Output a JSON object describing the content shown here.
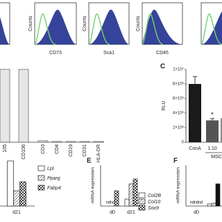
{
  "flow": {
    "y_label": "Counts",
    "x_labels": [
      "CD73",
      "Sca1",
      "CD45"
    ]
  },
  "chart_data": [
    {
      "type": "bar",
      "categories": [
        "105",
        "CD106",
        "CD3",
        "CD4",
        "CD19",
        "CD31",
        "HLA-DR"
      ],
      "values": [
        100,
        100,
        2,
        1,
        1,
        1,
        1
      ],
      "color": "#e6e6e6"
    },
    {
      "type": "bar",
      "label": "C",
      "y_label": "RLU",
      "group_label": "MSC",
      "annotation": "*",
      "categories": [
        "ConA",
        "1:10",
        null
      ],
      "values": [
        8000000,
        3000000,
        3300000
      ],
      "errors": [
        1000000,
        250000,
        200000
      ],
      "colors": [
        "#1a1a1a",
        "#555555",
        "#8a8a8a"
      ],
      "ylim": [
        0,
        10000000
      ],
      "yticks": [
        0,
        {
          "value": 2000000,
          "label": "2×10⁶"
        },
        {
          "value": 4000000,
          "label": "4×10⁶"
        },
        {
          "value": 6000000,
          "label": "6×10⁶"
        },
        {
          "value": 8000000,
          "label": "8×10⁶"
        },
        {
          "value": 10000000,
          "label": "1×10⁷"
        }
      ]
    },
    {
      "type": "grouped-bar",
      "categories": [
        "d21"
      ],
      "series": [
        {
          "name": "Lpl",
          "color": "#ffffff",
          "pattern": "none",
          "values": [
            6.5
          ]
        },
        {
          "name": "Pparg",
          "color": "#ffffff",
          "pattern": "hatch",
          "values": [
            2.2
          ]
        },
        {
          "name": "Fabp4",
          "color": "#ffffff",
          "pattern": "checker",
          "values": [
            3.5
          ]
        }
      ]
    },
    {
      "type": "grouped-bar",
      "label": "E",
      "y_label": "mRNA expression",
      "categories": [
        "d0",
        "d21"
      ],
      "series": [
        {
          "name": "Col2B",
          "color": "#ffffff",
          "pattern": "none",
          "values": [
            null,
            1.0
          ],
          "value_labels": [
            "nd",
            null
          ]
        },
        {
          "name": "Col10",
          "color": "#ffffff",
          "pattern": "hatch",
          "values": [
            null,
            3.2
          ],
          "value_labels": [
            "nd",
            null
          ]
        },
        {
          "name": "Sox9",
          "color": "#ffffff",
          "pattern": "checker",
          "values": [
            2.2,
            3.9
          ]
        }
      ]
    },
    {
      "type": "grouped-bar",
      "label": "F",
      "y_label": "mRNA expression",
      "categories": [
        "d0",
        null
      ],
      "series": [
        {
          "color": "#ffffff",
          "pattern": "none",
          "values": [
            null,
            0.3
          ],
          "value_labels": [
            "nd",
            null
          ]
        },
        {
          "color": "#ffffff",
          "pattern": "hatch",
          "values": [
            null,
            0.4
          ],
          "value_labels": [
            "nd",
            null
          ]
        },
        {
          "color": "#111111",
          "pattern": "none",
          "values": [
            null,
            3.2
          ],
          "value_labels": [
            "nd",
            null
          ]
        }
      ]
    }
  ]
}
